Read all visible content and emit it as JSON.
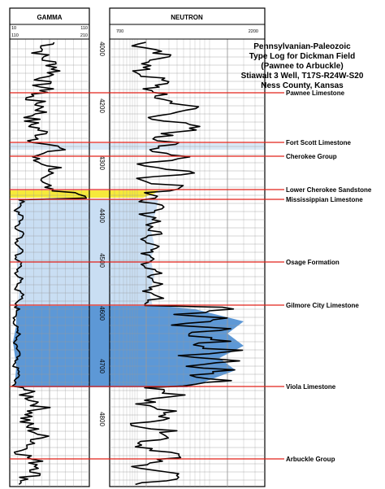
{
  "header": {
    "gamma_label": "GAMMA",
    "neutron_label": "NEUTRON",
    "gamma_scale_top": [
      "10",
      "110"
    ],
    "gamma_scale_bottom": [
      "110",
      "210"
    ],
    "neutron_scale": [
      "700",
      "2200"
    ]
  },
  "title_lines": [
    "Pennsylvanian-Paleozoic",
    "Type Log for Dickman Field",
    "(Pawnee to Arbuckle)",
    "Stiawalt 3 Well, T17S-R24W-S20",
    "Ness County, Kansas"
  ],
  "depth_labels": [
    "4000",
    "4200",
    "4300",
    "4400",
    "4500",
    "4600",
    "4700",
    "4800"
  ],
  "formations": [
    {
      "name": "Pawnee Limestone"
    },
    {
      "name": "Fort Scott Limestone"
    },
    {
      "name": "Cherokee Group"
    },
    {
      "name": "Lower Cherokee Sandstone"
    },
    {
      "name": "Mississippian Limestone"
    },
    {
      "name": "Osage Formation"
    },
    {
      "name": "Gilmore City Limestone"
    },
    {
      "name": "Viola Limestone"
    },
    {
      "name": "Arbuckle Group"
    }
  ],
  "colors": {
    "tops_line": "#e2231a",
    "sandstone": "#f6e93a",
    "osage_fill": "#c9def3",
    "gilmore_fill": "#5d98d6",
    "scott_band": "#d9e8f6"
  }
}
